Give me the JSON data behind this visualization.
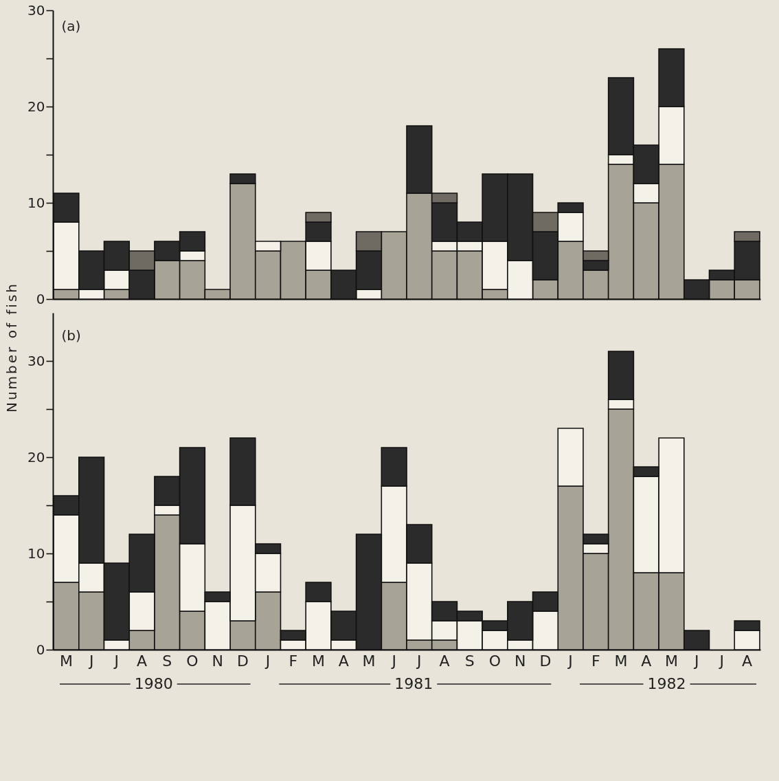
{
  "chart_data": [
    {
      "type": "bar",
      "title": "(a)",
      "ylabel": "Number of fish",
      "stacked": true,
      "tick_labels": "y",
      "categories": [
        null,
        null,
        null,
        null,
        null,
        null,
        null,
        null,
        null,
        null,
        null,
        null,
        null,
        null,
        null,
        null,
        null,
        null,
        null,
        null,
        null,
        null,
        null,
        null,
        null,
        null,
        null,
        null
      ],
      "ylim": [
        0,
        30
      ],
      "yticks": [
        0,
        {
          "value": 5,
          "label": null
        },
        10,
        {
          "value": 15,
          "label": null
        },
        20,
        {
          "value": 25,
          "label": null
        },
        30
      ],
      "series": [
        {
          "color": "#a8a397",
          "values": [
            1,
            0,
            1,
            0,
            4,
            4,
            1,
            12,
            5,
            6,
            3,
            0,
            0,
            7,
            11,
            5,
            5,
            1,
            0,
            2,
            6,
            3,
            14,
            10,
            14,
            0,
            2,
            2
          ]
        },
        {
          "color": "#f4f1e8",
          "values": [
            7,
            1,
            2,
            0,
            0,
            1,
            0,
            0,
            1,
            0,
            3,
            0,
            1,
            0,
            0,
            1,
            1,
            5,
            4,
            0,
            3,
            0,
            1,
            2,
            6,
            0,
            0,
            0
          ]
        },
        {
          "color": "#2b2b2b",
          "values": [
            3,
            4,
            3,
            3,
            2,
            2,
            0,
            1,
            0,
            0,
            2,
            3,
            4,
            0,
            7,
            4,
            2,
            7,
            9,
            5,
            1,
            1,
            8,
            4,
            6,
            2,
            1,
            4
          ]
        },
        {
          "color": "#6f6b62",
          "values": [
            0,
            0,
            0,
            2,
            0,
            0,
            0,
            0,
            0,
            0,
            1,
            0,
            2,
            0,
            0,
            1,
            0,
            0,
            0,
            2,
            0,
            1,
            0,
            0,
            0,
            0,
            0,
            1
          ]
        }
      ]
    },
    {
      "type": "bar",
      "title": "(b)",
      "stacked": true,
      "categories": [
        "M",
        "J",
        "J",
        "A",
        "S",
        "O",
        "N",
        "D",
        "J",
        "F",
        "M",
        "A",
        "M",
        "J",
        "J",
        "A",
        "S",
        "O",
        "N",
        "D",
        "J",
        "F",
        "M",
        "A",
        "M",
        "J",
        "J",
        "A"
      ],
      "ylim": [
        0,
        35
      ],
      "yticks": [
        0,
        {
          "value": 5,
          "label": null
        },
        10,
        {
          "value": 15,
          "label": null
        },
        20,
        {
          "value": 25,
          "label": null
        },
        30
      ],
      "annotations": [
        "1980",
        "1981",
        "1982"
      ],
      "series": [
        {
          "color": "#a8a397",
          "values": [
            7,
            6,
            0,
            2,
            14,
            4,
            0,
            3,
            6,
            0,
            0,
            0,
            0,
            7,
            1,
            1,
            0,
            0,
            0,
            0,
            17,
            10,
            25,
            8,
            8,
            0,
            0,
            0
          ]
        },
        {
          "color": "#f4f1e8",
          "values": [
            7,
            3,
            1,
            4,
            1,
            7,
            5,
            12,
            4,
            1,
            5,
            1,
            0,
            10,
            8,
            2,
            3,
            2,
            1,
            4,
            6,
            1,
            1,
            10,
            14,
            0,
            0,
            2
          ]
        },
        {
          "color": "#2b2b2b",
          "values": [
            2,
            11,
            8,
            6,
            3,
            10,
            1,
            7,
            1,
            1,
            2,
            3,
            12,
            4,
            4,
            2,
            1,
            1,
            4,
            2,
            0,
            1,
            5,
            1,
            0,
            2,
            0,
            1
          ]
        }
      ]
    }
  ]
}
